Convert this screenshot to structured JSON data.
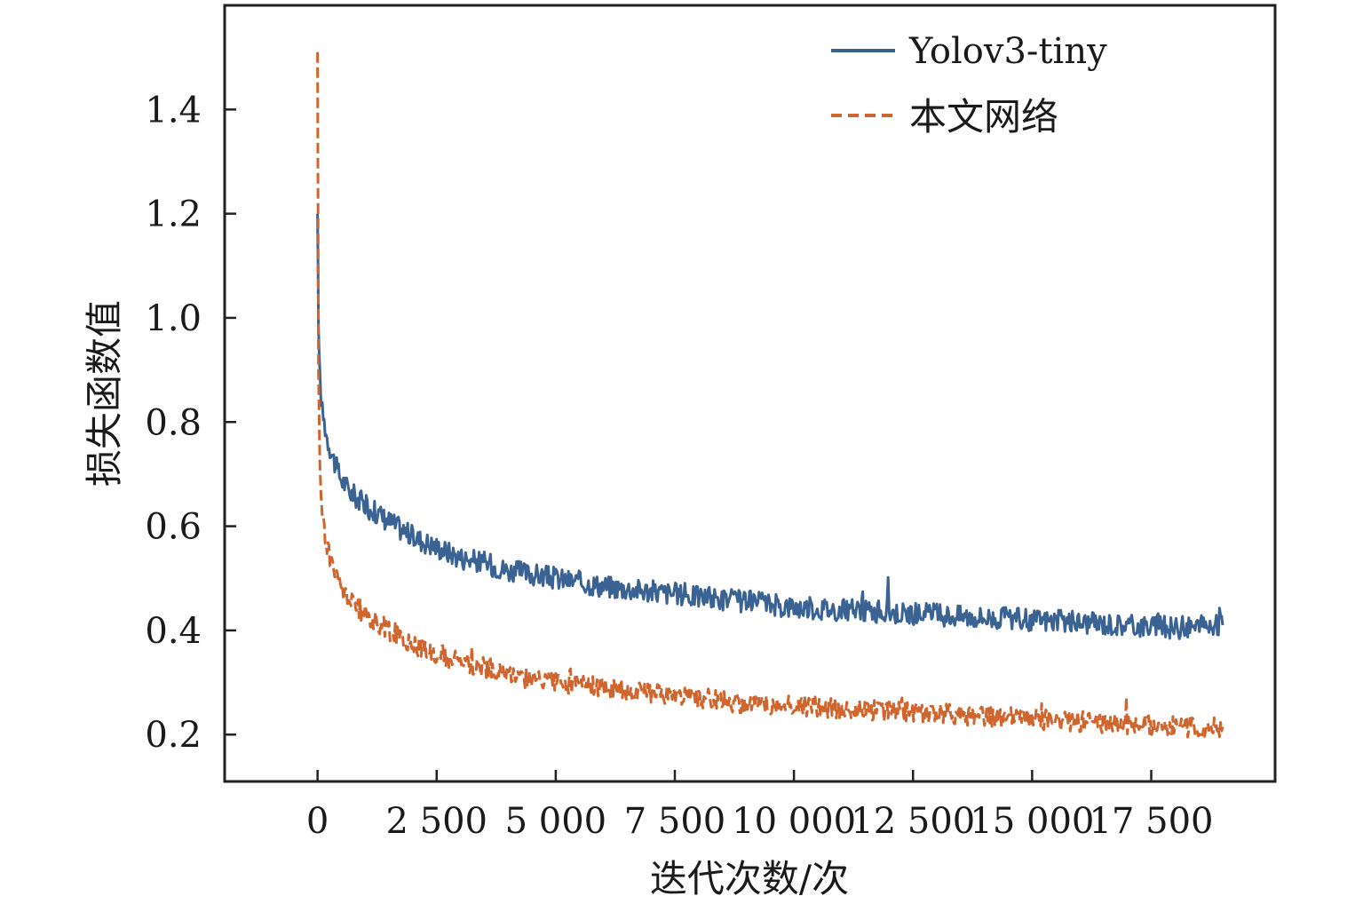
{
  "chart_data": {
    "type": "line",
    "title": "",
    "xlabel": "迭代次数/次",
    "ylabel": "损失函数值",
    "xlim": [
      -1950,
      20100
    ],
    "ylim": [
      0.11,
      1.6
    ],
    "x_ticks": [
      0,
      2500,
      5000,
      7500,
      10000,
      12500,
      15000,
      17500
    ],
    "x_tick_labels": [
      "0",
      "2 500",
      "5 000",
      "7 500",
      "10 000",
      "12 500",
      "15 000",
      "17 500"
    ],
    "y_ticks": [
      0.2,
      0.4,
      0.6,
      0.8,
      1.0,
      1.2,
      1.4
    ],
    "y_tick_labels": [
      "0.2",
      "0.4",
      "0.6",
      "0.8",
      "1.0",
      "1.2",
      "1.4"
    ],
    "grid": false,
    "legend_position": "top-right",
    "series": [
      {
        "name": "Yolov3-tiny",
        "color": "#3a6293",
        "style": "solid",
        "x": [
          0,
          20,
          50,
          100,
          200,
          300,
          400,
          500,
          700,
          1000,
          1500,
          2000,
          2500,
          3000,
          3500,
          4000,
          5000,
          6000,
          7000,
          8000,
          9000,
          10000,
          11000,
          12000,
          13000,
          14000,
          15000,
          16000,
          17000,
          18000,
          19000
        ],
        "y": [
          1.2,
          0.98,
          0.88,
          0.82,
          0.77,
          0.74,
          0.71,
          0.69,
          0.665,
          0.64,
          0.61,
          0.58,
          0.56,
          0.54,
          0.53,
          0.515,
          0.5,
          0.485,
          0.475,
          0.465,
          0.455,
          0.445,
          0.44,
          0.435,
          0.43,
          0.425,
          0.42,
          0.415,
          0.41,
          0.405,
          0.41
        ]
      },
      {
        "name": "本文网络",
        "color": "#d0652e",
        "style": "dashed",
        "x": [
          0,
          20,
          50,
          100,
          200,
          300,
          400,
          500,
          700,
          1000,
          1500,
          2000,
          2500,
          3000,
          3500,
          4000,
          5000,
          6000,
          7000,
          8000,
          9000,
          10000,
          11000,
          12000,
          13000,
          14000,
          15000,
          16000,
          17000,
          18000,
          19000
        ],
        "y": [
          1.51,
          0.9,
          0.7,
          0.62,
          0.56,
          0.53,
          0.5,
          0.48,
          0.455,
          0.43,
          0.4,
          0.375,
          0.355,
          0.34,
          0.33,
          0.315,
          0.3,
          0.29,
          0.28,
          0.27,
          0.26,
          0.255,
          0.25,
          0.245,
          0.24,
          0.235,
          0.23,
          0.225,
          0.22,
          0.215,
          0.215
        ]
      }
    ]
  }
}
